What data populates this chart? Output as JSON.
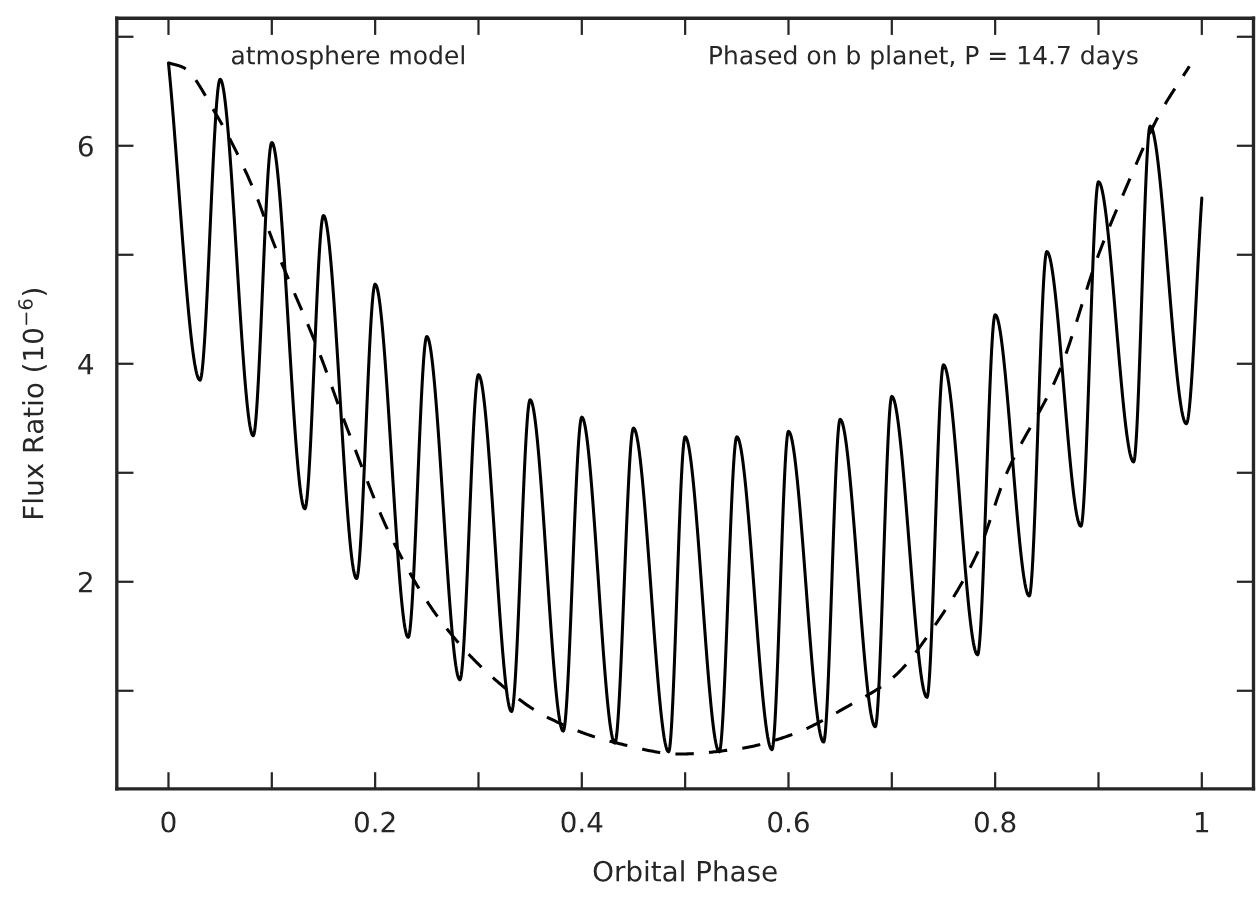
{
  "chart_data": {
    "type": "line",
    "xlabel": "Orbital Phase",
    "ylabel": "Flux Ratio (10$^{−6}$)",
    "annotations": [
      "atmosphere model",
      "Phased on b planet, P = 14.7 days"
    ],
    "xlim": [
      -0.05,
      1.05
    ],
    "ylim": [
      0.1,
      7.17
    ],
    "xticks": [
      0,
      {
        "value": 0.1,
        "label": null
      },
      0.2,
      {
        "value": 0.3,
        "label": null
      },
      0.4,
      {
        "value": 0.5,
        "label": null
      },
      0.6,
      {
        "value": 0.7,
        "label": null
      },
      0.8,
      {
        "value": 0.9,
        "label": null
      },
      1
    ],
    "yticks": [
      {
        "value": 1,
        "label": null
      },
      2,
      {
        "value": 3,
        "label": null
      },
      4,
      {
        "value": 5,
        "label": null
      },
      6,
      {
        "value": 7,
        "label": null
      }
    ],
    "grid": false,
    "series": [
      {
        "color": "#000000",
        "line_style": "solid",
        "x": [
          0,
          0.0305,
          0.05,
          0.082,
          0.1,
          0.132,
          0.15,
          0.182,
          0.2,
          0.232,
          0.25,
          0.282,
          0.3,
          0.332,
          0.35,
          0.382,
          0.4,
          0.432,
          0.45,
          0.484,
          0.5,
          0.533,
          0.55,
          0.584,
          0.6,
          0.634,
          0.65,
          0.684,
          0.7,
          0.734,
          0.75,
          0.783,
          0.8,
          0.833,
          0.85,
          0.883,
          0.9,
          0.934,
          0.95,
          0.985,
          1.0
        ],
        "values": [
          6.76,
          3.85,
          6.61,
          3.34,
          6.03,
          2.67,
          5.36,
          2.03,
          4.73,
          1.49,
          4.25,
          1.1,
          3.9,
          0.81,
          3.67,
          0.63,
          3.51,
          0.52,
          3.41,
          0.44,
          3.33,
          0.44,
          3.33,
          0.46,
          3.38,
          0.53,
          3.49,
          0.67,
          3.7,
          0.94,
          3.99,
          1.33,
          4.45,
          1.87,
          5.03,
          2.51,
          5.67,
          3.1,
          6.18,
          3.45,
          5.52
        ]
      },
      {
        "color": "#000000",
        "line_style": "dashed",
        "x": [
          0,
          0.014,
          0.046,
          0.085,
          0.1,
          0.146,
          0.172,
          0.217,
          0.262,
          0.314,
          0.366,
          0.43,
          0.495,
          0.553,
          0.604,
          0.656,
          0.701,
          0.746,
          0.785,
          0.81,
          0.862,
          0.9,
          0.926,
          0.959,
          0.988
        ],
        "values": [
          6.76,
          6.72,
          6.29,
          5.54,
          5.15,
          4.1,
          3.43,
          2.38,
          1.66,
          1.12,
          0.76,
          0.53,
          0.42,
          0.47,
          0.6,
          0.85,
          1.12,
          1.66,
          2.31,
          2.97,
          3.93,
          5.0,
          5.6,
          6.29,
          6.73
        ]
      }
    ]
  }
}
